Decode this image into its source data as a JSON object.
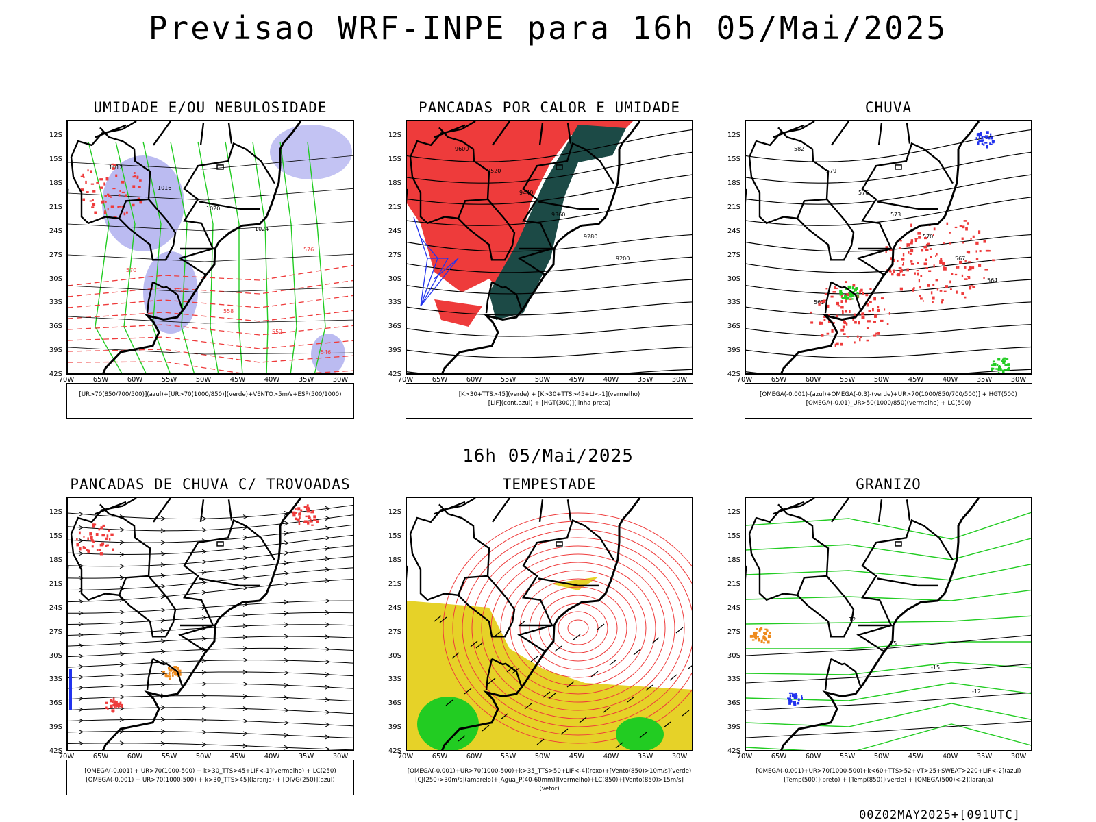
{
  "header": {
    "title": "Previsao WRF-INPE  para 16h 05/Mai/2025"
  },
  "middle": {
    "title": "16h 05/Mai/2025"
  },
  "footer": {
    "run": "00Z02MAY2025+[091UTC]"
  },
  "axes": {
    "lat": [
      "12S",
      "15S",
      "18S",
      "21S",
      "24S",
      "27S",
      "30S",
      "33S",
      "36S",
      "39S",
      "42S"
    ],
    "lon": [
      "70W",
      "65W",
      "60W",
      "55W",
      "50W",
      "45W",
      "40W",
      "35W",
      "30W"
    ]
  },
  "colors": {
    "red": "#ee3b3b",
    "green": "#22cc22",
    "blue": "#2233ee",
    "lavender": "#aaaaee",
    "darkgreen": "#1c4a46",
    "yellow": "#e6d228",
    "orange": "#ee8a1c"
  },
  "panels": [
    {
      "title": "UMIDADE E/OU NEBULOSIDADE",
      "legend": [
        "[UR>70(850/700/500)](azul)+[UR>70(1000/850)](verde)+VENTO>5m/s+ESP(500/1000)"
      ],
      "contour_labels": [
        "1012",
        "1016",
        "1020",
        "1024",
        "576",
        "570",
        "564",
        "558",
        "552",
        "546"
      ]
    },
    {
      "title": "PANCADAS POR CALOR E UMIDADE",
      "legend": [
        "[K>30+TTS>45](verde) + [K>30+TTS>45+LI<-1](vermelho)",
        "[LIF](cont.azul) + [HGT(300)](linha preta)"
      ],
      "contour_labels": [
        "9600",
        "9520",
        "9440",
        "9360",
        "9280",
        "9200"
      ]
    },
    {
      "title": "CHUVA",
      "legend": [
        "[OMEGA(-0.001)-(azul)+OMEGA(-0.3)-(verde)+UR>70(1000/850/700/500)] + HGT(500)",
        "[OMEGA(-0.01)_UR>50(1000/850)(vermelho) + LC(500)"
      ],
      "contour_labels": [
        "582",
        "579",
        "576",
        "573",
        "570",
        "567",
        "564",
        "561"
      ]
    },
    {
      "title": "PANCADAS DE CHUVA C/ TROVOADAS",
      "legend": [
        "[OMEGA(-0.001) + UR>70(1000-500) + k>30_TTS>45+LIF<-1](vermelho) + LC(250)",
        "[OMEGA(-0.001) + UR>70(1000-500) + k>30_TTS>45](laranja) + [DIVG(250)](azul)"
      ],
      "contour_labels": []
    },
    {
      "title": "TEMPESTADE",
      "legend": [
        "[OMEGA(-0.001)+UR>70(1000-500)+k>35_TTS>50+LIF<-4](roxo)+[Vento(850)>10m/s](verde)",
        "[CJ(250)>30m/s](amarelo)+[Agua_P(40-60mm)](vermelho)+LC(850)+[Vento(850)>15m/s](vetor)"
      ],
      "contour_labels": [
        "40",
        "20"
      ]
    },
    {
      "title": "GRANIZO",
      "legend": [
        "[OMEGA(-0.001)+UR>70(1000-500)+k<60+TTS>52+VT>25+SWEAT>220+LIF<-2](azul)",
        "[Temp(500)](preto) + [Temp(850)](verde) + [OMEGA(500)<-2](laranja)"
      ],
      "contour_labels": [
        "12",
        "15",
        "-15",
        "-12"
      ]
    }
  ]
}
